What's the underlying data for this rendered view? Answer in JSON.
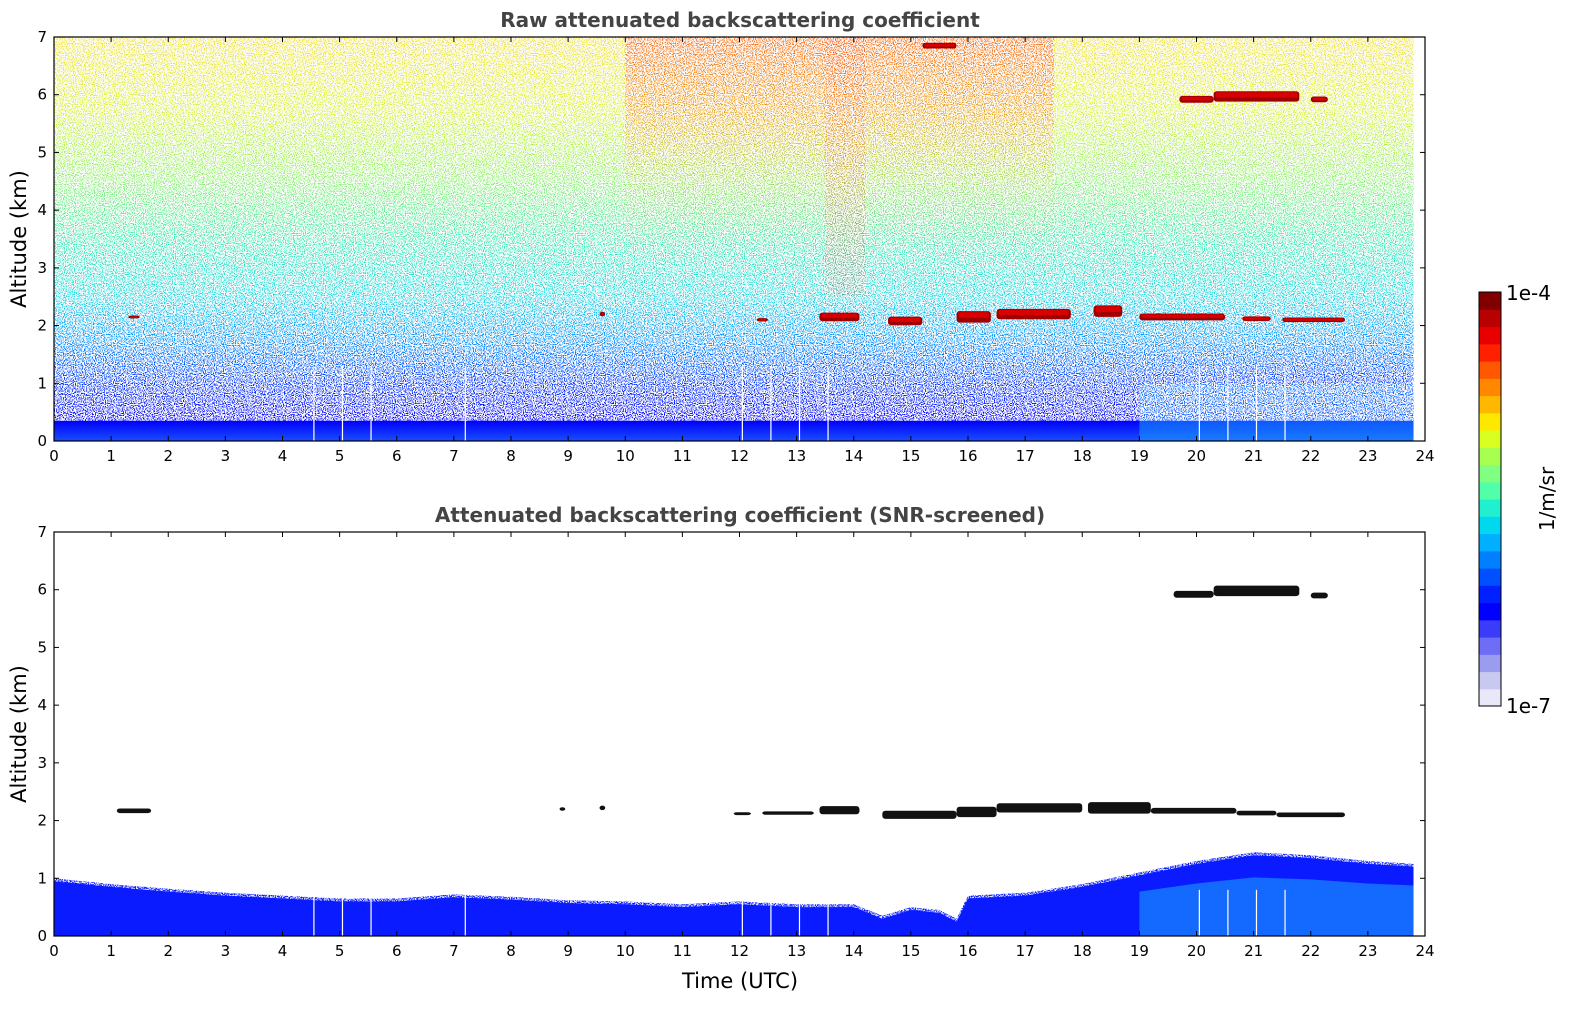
{
  "chart_data": [
    {
      "type": "heatmap",
      "title": "Raw attenuated backscattering coefficient",
      "xlabel": "",
      "ylabel": "Altitude (km)",
      "xlim": [
        0,
        24
      ],
      "ylim": [
        0,
        7
      ],
      "xticks": [
        "0",
        "1",
        "2",
        "3",
        "4",
        "5",
        "6",
        "7",
        "8",
        "9",
        "10",
        "11",
        "12",
        "13",
        "14",
        "15",
        "16",
        "17",
        "18",
        "19",
        "20",
        "21",
        "22",
        "23",
        "24"
      ],
      "yticks": [
        "0",
        "1",
        "2",
        "3",
        "4",
        "5",
        "6",
        "7"
      ],
      "data_end_time": 23.8,
      "gap_times": [
        4.55,
        5.05,
        5.55,
        7.2,
        12.05,
        12.55,
        13.05,
        13.55,
        20.05,
        20.55,
        21.05,
        21.55
      ],
      "cloud_layers": [
        {
          "x": [
            1.3,
            1.5
          ],
          "y": 2.15,
          "thickness": 0.05
        },
        {
          "x": [
            9.55,
            9.65
          ],
          "y": 2.2,
          "thickness": 0.08
        },
        {
          "x": [
            12.3,
            12.5
          ],
          "y": 2.1,
          "thickness": 0.06
        },
        {
          "x": [
            13.4,
            14.1
          ],
          "y": 2.15,
          "thickness": 0.15
        },
        {
          "x": [
            14.6,
            15.2
          ],
          "y": 2.08,
          "thickness": 0.15
        },
        {
          "x": [
            15.8,
            16.4
          ],
          "y": 2.15,
          "thickness": 0.2
        },
        {
          "x": [
            16.5,
            17.8
          ],
          "y": 2.2,
          "thickness": 0.18
        },
        {
          "x": [
            18.2,
            18.7
          ],
          "y": 2.25,
          "thickness": 0.2
        },
        {
          "x": [
            19.0,
            20.5
          ],
          "y": 2.15,
          "thickness": 0.12
        },
        {
          "x": [
            20.8,
            21.3
          ],
          "y": 2.12,
          "thickness": 0.08
        },
        {
          "x": [
            21.5,
            22.6
          ],
          "y": 2.1,
          "thickness": 0.08
        },
        {
          "x": [
            19.7,
            20.3
          ],
          "y": 5.92,
          "thickness": 0.12
        },
        {
          "x": [
            20.3,
            21.8
          ],
          "y": 5.97,
          "thickness": 0.18
        },
        {
          "x": [
            22.0,
            22.3
          ],
          "y": 5.92,
          "thickness": 0.1
        },
        {
          "x": [
            15.2,
            15.8
          ],
          "y": 6.85,
          "thickness": 0.1
        }
      ]
    },
    {
      "type": "heatmap",
      "title": "Attenuated backscattering coefficient (SNR-screened)",
      "xlabel": "Time (UTC)",
      "ylabel": "Altitude (km)",
      "xlim": [
        0,
        24
      ],
      "ylim": [
        0,
        7
      ],
      "xticks": [
        "0",
        "1",
        "2",
        "3",
        "4",
        "5",
        "6",
        "7",
        "8",
        "9",
        "10",
        "11",
        "12",
        "13",
        "14",
        "15",
        "16",
        "17",
        "18",
        "19",
        "20",
        "21",
        "22",
        "23",
        "24"
      ],
      "yticks": [
        "0",
        "1",
        "2",
        "3",
        "4",
        "5",
        "6",
        "7"
      ],
      "data_end_time": 23.8,
      "gap_times": [
        4.55,
        5.05,
        5.55,
        7.2,
        12.05,
        12.55,
        13.05,
        13.55,
        20.05,
        20.55,
        21.05,
        21.55
      ],
      "boundary_layer_top": [
        [
          0,
          1.0
        ],
        [
          1,
          0.9
        ],
        [
          2,
          0.82
        ],
        [
          3,
          0.75
        ],
        [
          4,
          0.7
        ],
        [
          5,
          0.65
        ],
        [
          6,
          0.65
        ],
        [
          7,
          0.72
        ],
        [
          8,
          0.68
        ],
        [
          9,
          0.62
        ],
        [
          10,
          0.6
        ],
        [
          11,
          0.55
        ],
        [
          12,
          0.6
        ],
        [
          13,
          0.55
        ],
        [
          14,
          0.55
        ],
        [
          14.5,
          0.35
        ],
        [
          15,
          0.5
        ],
        [
          15.5,
          0.45
        ],
        [
          15.8,
          0.3
        ],
        [
          16,
          0.7
        ],
        [
          17,
          0.75
        ],
        [
          18,
          0.9
        ],
        [
          19,
          1.1
        ],
        [
          20,
          1.3
        ],
        [
          21,
          1.45
        ],
        [
          22,
          1.4
        ],
        [
          23,
          1.3
        ],
        [
          23.8,
          1.25
        ]
      ],
      "cloud_layers": [
        {
          "x": [
            1.1,
            1.7
          ],
          "y": 2.17,
          "thickness": 0.08
        },
        {
          "x": [
            8.85,
            8.95
          ],
          "y": 2.2,
          "thickness": 0.06
        },
        {
          "x": [
            9.55,
            9.65
          ],
          "y": 2.22,
          "thickness": 0.08
        },
        {
          "x": [
            11.9,
            12.2
          ],
          "y": 2.12,
          "thickness": 0.05
        },
        {
          "x": [
            12.4,
            13.3
          ],
          "y": 2.13,
          "thickness": 0.06
        },
        {
          "x": [
            13.4,
            14.1
          ],
          "y": 2.18,
          "thickness": 0.14
        },
        {
          "x": [
            14.5,
            15.8
          ],
          "y": 2.1,
          "thickness": 0.14
        },
        {
          "x": [
            15.8,
            16.5
          ],
          "y": 2.15,
          "thickness": 0.18
        },
        {
          "x": [
            16.5,
            18.0
          ],
          "y": 2.22,
          "thickness": 0.16
        },
        {
          "x": [
            18.1,
            19.2
          ],
          "y": 2.22,
          "thickness": 0.2
        },
        {
          "x": [
            19.2,
            20.7
          ],
          "y": 2.17,
          "thickness": 0.1
        },
        {
          "x": [
            20.7,
            21.4
          ],
          "y": 2.13,
          "thickness": 0.08
        },
        {
          "x": [
            21.4,
            22.6
          ],
          "y": 2.1,
          "thickness": 0.08
        },
        {
          "x": [
            19.6,
            20.3
          ],
          "y": 5.92,
          "thickness": 0.12
        },
        {
          "x": [
            20.3,
            21.8
          ],
          "y": 5.98,
          "thickness": 0.18
        },
        {
          "x": [
            22.0,
            22.3
          ],
          "y": 5.9,
          "thickness": 0.1
        }
      ]
    }
  ],
  "colorbar": {
    "label": "1/m/sr",
    "max_label": "1e-4",
    "min_label": "1e-7",
    "scale": "log",
    "colormap": "jet",
    "colors": [
      "#e8e8f8",
      "#c8c8f0",
      "#9b9bf0",
      "#6d6df5",
      "#3b3bfa",
      "#0000ff",
      "#0020ff",
      "#0050ff",
      "#0080ff",
      "#00b0ff",
      "#00d8f0",
      "#20f0d0",
      "#50ffa8",
      "#80ff80",
      "#a8ff50",
      "#d8ff20",
      "#ffe800",
      "#ffb800",
      "#ff8800",
      "#ff5800",
      "#ff2000",
      "#e80000",
      "#b80000",
      "#800000"
    ]
  }
}
